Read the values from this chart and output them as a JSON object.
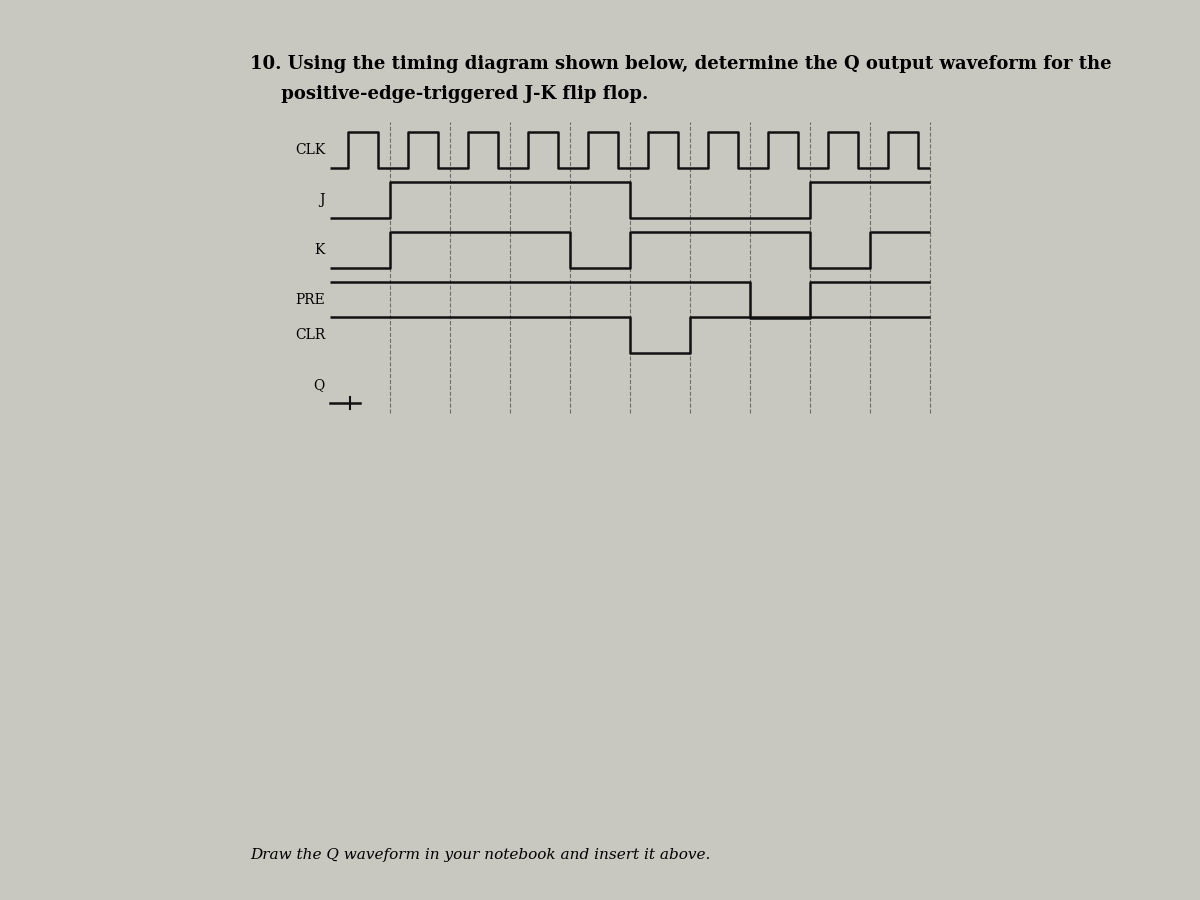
{
  "title_line1": "10. Using the timing diagram shown below, determine the Q output waveform for the",
  "title_line2": "     positive-edge-triggered J-K flip flop.",
  "footer": "Draw the Q waveform in your notebook and insert it above.",
  "background_color": "#c8c8c0",
  "signal_color": "#111111",
  "dashed_color": "#555555",
  "labels": [
    "CLK",
    "J",
    "K",
    "PRE",
    "CLR",
    "Q"
  ],
  "title_fontsize": 13,
  "label_fontsize": 10,
  "footer_fontsize": 11,
  "clk_half_periods": 20,
  "j_times": [
    0,
    1,
    3,
    5,
    7,
    8,
    10
  ],
  "j_vals": [
    0,
    1,
    1,
    0,
    0,
    1,
    1
  ],
  "k_times": [
    0,
    1,
    3,
    4,
    5,
    7,
    8,
    9,
    10
  ],
  "k_vals": [
    0,
    1,
    1,
    0,
    1,
    1,
    0,
    1,
    1
  ],
  "pre_times": [
    0,
    6,
    7,
    8,
    10
  ],
  "pre_vals": [
    1,
    1,
    0,
    1,
    1
  ],
  "clr_times": [
    0,
    3,
    5,
    6,
    10
  ],
  "clr_vals": [
    1,
    1,
    0,
    1,
    1
  ],
  "q_times": [
    0,
    0.5
  ],
  "q_vals": [
    0,
    0
  ],
  "num_dashed": 10
}
